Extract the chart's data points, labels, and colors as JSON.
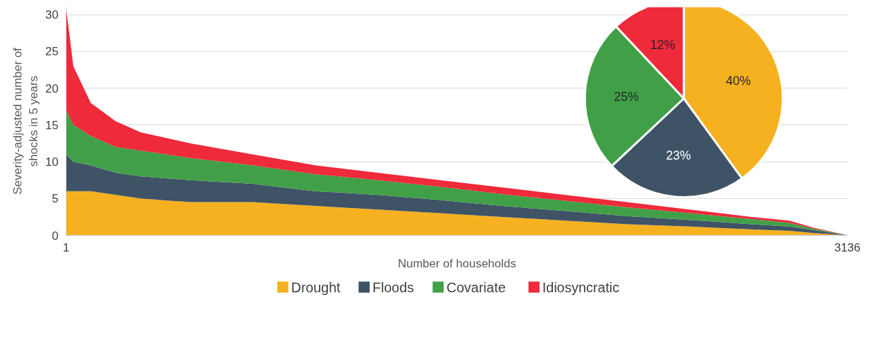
{
  "chart_data": [
    {
      "type": "area",
      "stacked": true,
      "xlabel": "Number of households",
      "ylabel": "Severity-adjusted number of shocks in 5 years",
      "x": [
        1,
        30,
        100,
        200,
        300,
        500,
        750,
        1000,
        1250,
        1500,
        1750,
        2000,
        2250,
        2500,
        2750,
        2900,
        3000,
        3136
      ],
      "series": [
        {
          "name": "Drought",
          "color": "#f5b120",
          "values": [
            6,
            6,
            6,
            5.5,
            5,
            4.5,
            4.5,
            4,
            3.5,
            3,
            2.5,
            2,
            1.5,
            1.2,
            0.8,
            0.6,
            0.3,
            0
          ]
        },
        {
          "name": "Floods",
          "color": "#3f5366",
          "values": [
            5,
            4,
            3.5,
            3,
            3,
            3,
            2.5,
            2,
            2,
            1.8,
            1.5,
            1.3,
            1.1,
            0.9,
            0.7,
            0.6,
            0.4,
            0
          ]
        },
        {
          "name": "Covariate",
          "color": "#41a047",
          "values": [
            6,
            5,
            4,
            3.5,
            3.5,
            3,
            2.5,
            2.3,
            2,
            1.8,
            1.6,
            1.4,
            1.2,
            0.9,
            0.7,
            0.5,
            0.2,
            0
          ]
        },
        {
          "name": "Idiosyncratic",
          "color": "#ee2a3b",
          "values": [
            14,
            8,
            4.5,
            3.5,
            2.5,
            2,
            1.5,
            1.2,
            1,
            0.9,
            0.9,
            0.8,
            0.7,
            0.5,
            0.3,
            0.3,
            0.1,
            0
          ]
        }
      ],
      "xlim": [
        1,
        3136
      ],
      "xticks": [
        1,
        3136
      ],
      "ylim": [
        0,
        31
      ],
      "yticks": [
        0,
        5,
        10,
        15,
        20,
        25,
        30
      ],
      "grid": "y",
      "legend": "bottom"
    },
    {
      "type": "pie",
      "categories": [
        null,
        null,
        null,
        null
      ],
      "values": [
        40,
        23,
        25,
        12
      ],
      "colors": [
        "#f5b120",
        "#3f5366",
        "#41a047",
        "#ee2a3b"
      ],
      "value_labels": [
        "40%",
        "23%",
        "25%",
        "12%"
      ]
    }
  ]
}
